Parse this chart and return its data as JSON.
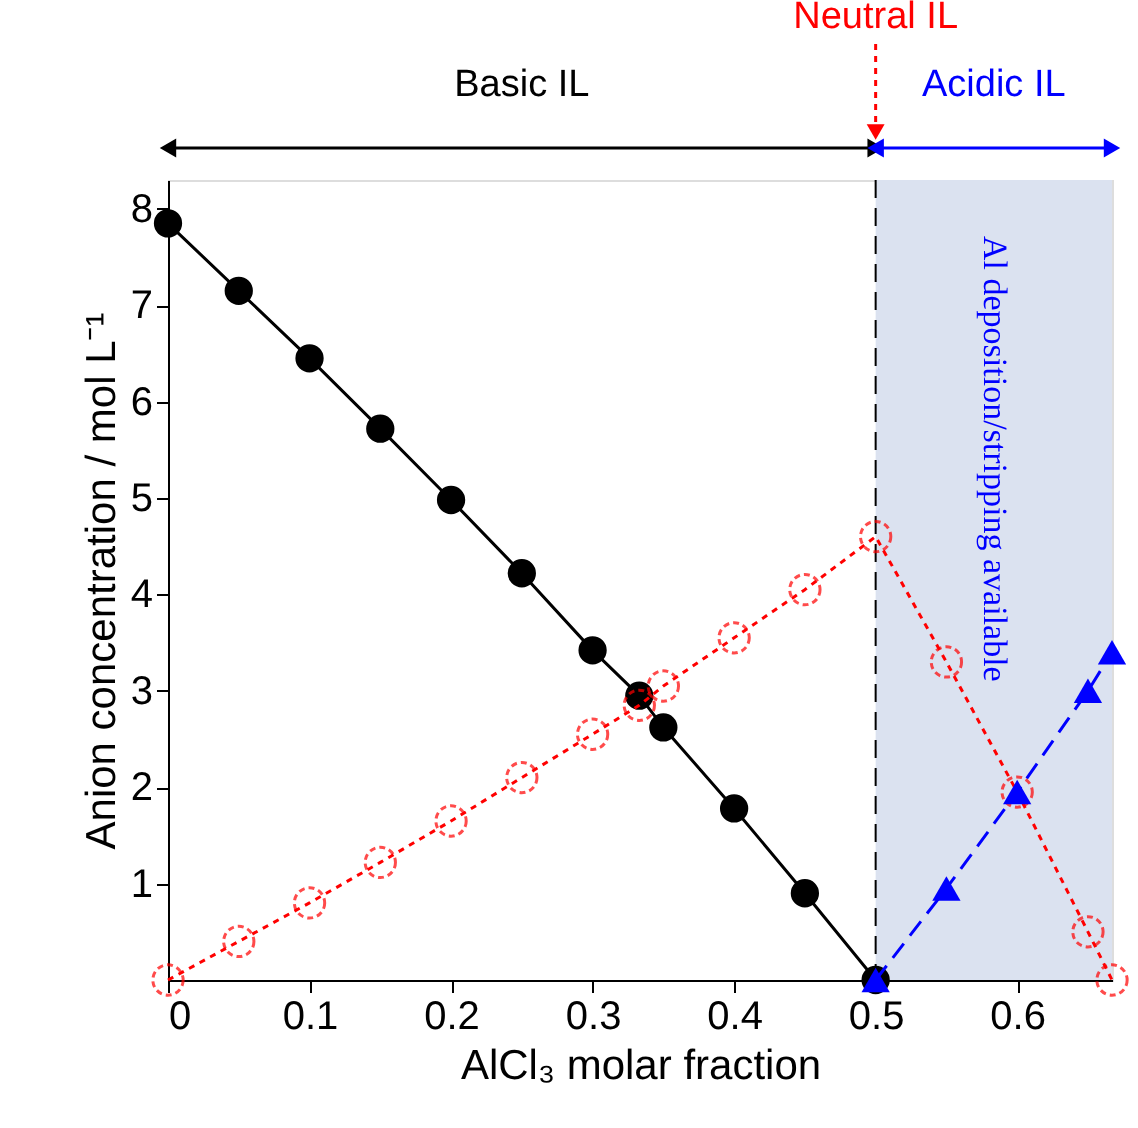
{
  "chart_data": {
    "type": "line",
    "xlabel": "AlCl₃ molar fraction",
    "ylabel": "Anion concentration / mol L⁻¹",
    "xlim": [
      0,
      0.667
    ],
    "ylim": [
      0,
      8.3
    ],
    "xticks": [
      0,
      0.1,
      0.2,
      0.3,
      0.4,
      0.5,
      0.6
    ],
    "yticks": [
      1,
      2,
      3,
      4,
      5,
      6,
      7,
      8
    ],
    "grid": false,
    "series": [
      {
        "color": "#000000",
        "marker": "circle",
        "line_style": "solid",
        "x": [
          0,
          0.05,
          0.1,
          0.15,
          0.2,
          0.25,
          0.3,
          0.333,
          0.35,
          0.4,
          0.45,
          0.5
        ],
        "values": [
          7.85,
          7.15,
          6.45,
          5.72,
          4.98,
          4.22,
          3.42,
          2.95,
          2.62,
          1.78,
          0.9,
          0
        ]
      },
      {
        "color": "#ff0000",
        "marker": "circle",
        "line_style": "dotted",
        "x": [
          0,
          0.05,
          0.1,
          0.15,
          0.2,
          0.25,
          0.3,
          0.333,
          0.35,
          0.4,
          0.45,
          0.5,
          0.55,
          0.6,
          0.65,
          0.667
        ],
        "values": [
          0,
          0.4,
          0.8,
          1.22,
          1.65,
          2.1,
          2.55,
          2.85,
          3.05,
          3.55,
          4.05,
          4.6,
          3.3,
          1.95,
          0.5,
          0
        ]
      },
      {
        "color": "#0000ff",
        "marker": "triangle",
        "line_style": "dashed",
        "x": [
          0.5,
          0.55,
          0.6,
          0.65,
          0.667
        ],
        "values": [
          0,
          0.95,
          1.95,
          3.0,
          3.4
        ]
      }
    ],
    "ref_lines": [
      {
        "axis": "x",
        "value": 0.5,
        "color": "#000000",
        "line_style": "dashed"
      }
    ],
    "bands": [
      {
        "axis": "x",
        "from": 0.5,
        "to": 0.667,
        "color": "#dbe2f0",
        "label": "Al deposition/stripping available"
      }
    ],
    "annotations": [
      "Basic IL",
      "Neutral IL",
      "Acidic IL"
    ]
  }
}
